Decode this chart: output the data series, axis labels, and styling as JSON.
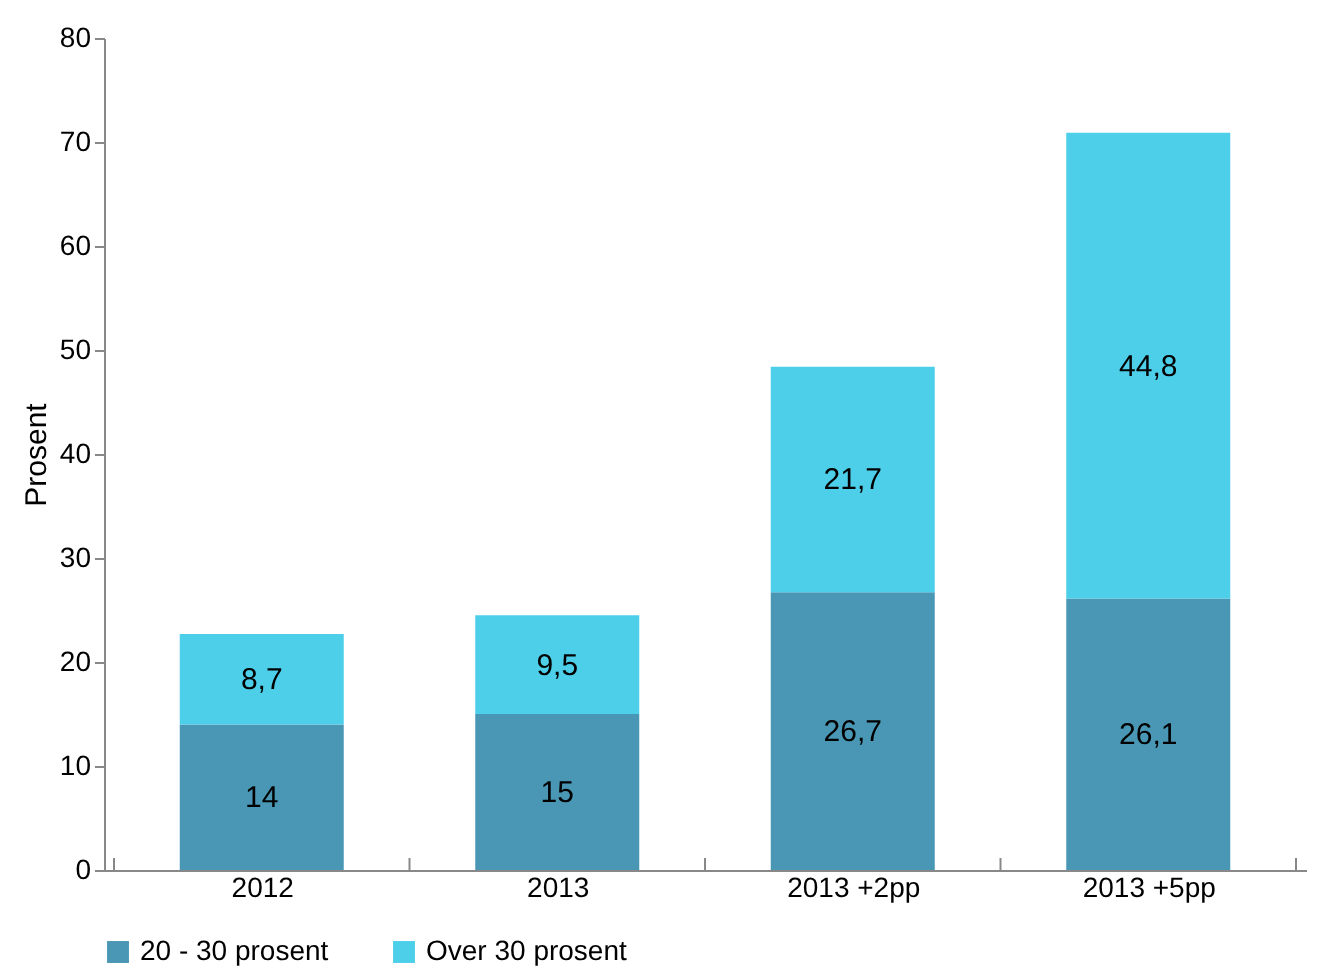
{
  "chart_data": {
    "type": "bar",
    "stacked": true,
    "ylabel": "Prosent",
    "categories": [
      "2012",
      "2013",
      "2013 +2pp",
      "2013 +5pp"
    ],
    "series": [
      {
        "name": "20 - 30 prosent",
        "color": "#4a97b5",
        "values": [
          14,
          15,
          26.7,
          26.1
        ],
        "value_labels": [
          "14",
          "15",
          "26,7",
          "26,1"
        ]
      },
      {
        "name": "Over 30 prosent",
        "color": "#4dcfea",
        "values": [
          8.7,
          9.5,
          21.7,
          44.8
        ],
        "value_labels": [
          "8,7",
          "9,5",
          "21,7",
          "44,8"
        ]
      }
    ],
    "ylim": [
      0,
      80
    ],
    "yticks": [
      0,
      10,
      20,
      30,
      40,
      50,
      60,
      70,
      80
    ],
    "grid": false,
    "legend": "bottom"
  }
}
